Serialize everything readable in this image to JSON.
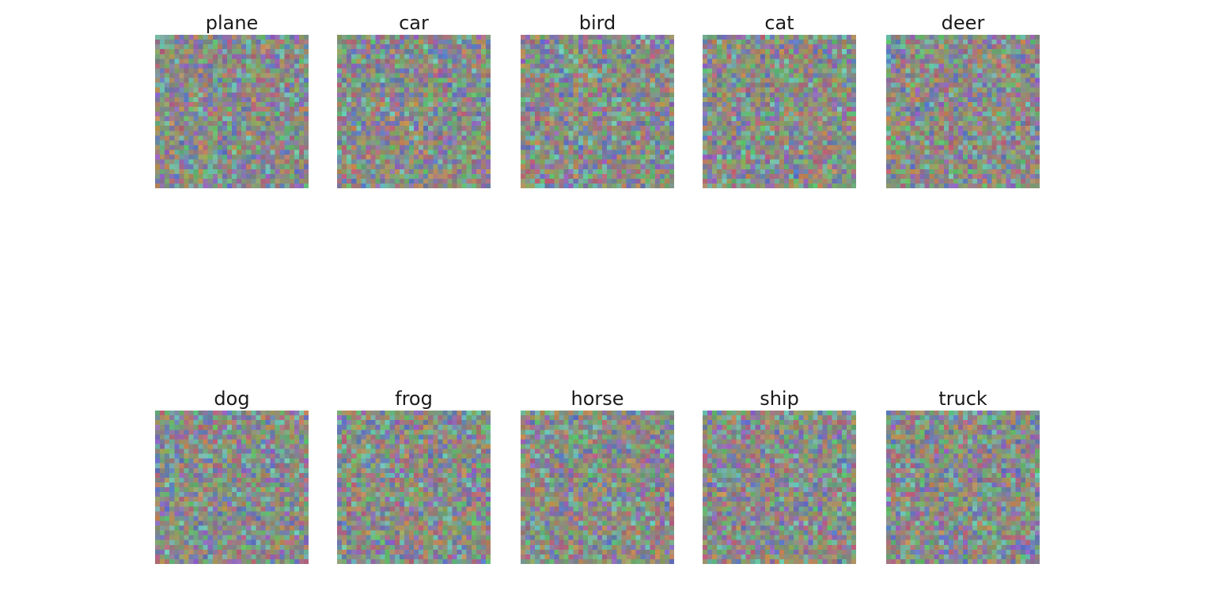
{
  "figure": {
    "panels": [
      {
        "title": "plane"
      },
      {
        "title": "car"
      },
      {
        "title": "bird"
      },
      {
        "title": "cat"
      },
      {
        "title": "deer"
      },
      {
        "title": "dog"
      },
      {
        "title": "frog"
      },
      {
        "title": "horse"
      },
      {
        "title": "ship"
      },
      {
        "title": "truck"
      }
    ],
    "noise_palette": {
      "mean": "#7f8a7f",
      "spread_colors": [
        "#c75c7a",
        "#5ac86b",
        "#5a6fd6",
        "#d28a4a",
        "#9a5ad2",
        "#6ad2c2",
        "#9aaa5a",
        "#888888"
      ]
    }
  }
}
